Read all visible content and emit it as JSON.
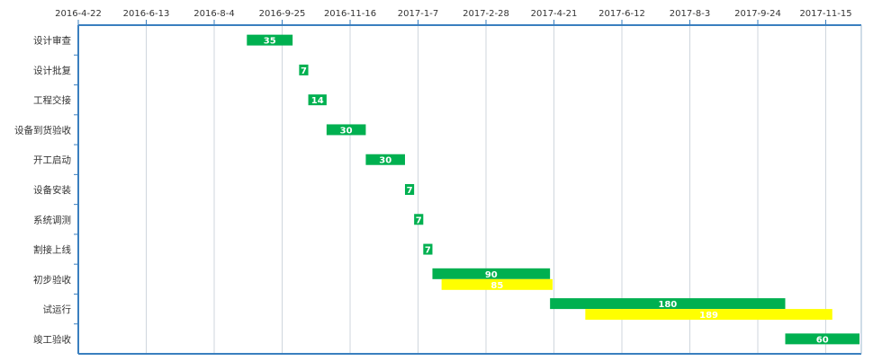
{
  "chart_data": {
    "type": "bar",
    "orientation": "horizontal-gantt",
    "x_ticks": [
      "2016-4-22",
      "2016-6-13",
      "2016-8-4",
      "2016-9-25",
      "2016-11-16",
      "2017-1-7",
      "2017-2-28",
      "2017-4-21",
      "2017-6-12",
      "2017-8-3",
      "2017-9-24",
      "2017-11-15"
    ],
    "xlim": [
      "2016-4-22",
      "2017-12-10"
    ],
    "grid": true,
    "categories": [
      "设计审查",
      "设计批复",
      "工程交接",
      "设备到货验收",
      "开工启动",
      "设备安装",
      "系统调测",
      "割接上线",
      "初步验收",
      "试运行",
      "竣工验收"
    ],
    "series": [
      {
        "color": "#00b050",
        "tasks": [
          {
            "category": "设计审查",
            "start": "2016-8-29",
            "end": "2016-10-3",
            "duration": 35
          },
          {
            "category": "设计批复",
            "start": "2016-10-8",
            "end": "2016-10-15",
            "duration": 7
          },
          {
            "category": "工程交接",
            "start": "2016-10-15",
            "end": "2016-10-29",
            "duration": 14
          },
          {
            "category": "设备到货验收",
            "start": "2016-10-29",
            "end": "2016-11-28",
            "duration": 30
          },
          {
            "category": "开工启动",
            "start": "2016-11-28",
            "end": "2016-12-28",
            "duration": 30
          },
          {
            "category": "设备安装",
            "start": "2016-12-28",
            "end": "2017-1-4",
            "duration": 7
          },
          {
            "category": "系统调测",
            "start": "2017-1-4",
            "end": "2017-1-11",
            "duration": 7
          },
          {
            "category": "割接上线",
            "start": "2017-1-11",
            "end": "2017-1-18",
            "duration": 7
          },
          {
            "category": "初步验收",
            "start": "2017-1-18",
            "end": "2017-4-18",
            "duration": 90
          },
          {
            "category": "试运行",
            "start": "2017-4-18",
            "end": "2017-10-15",
            "duration": 180
          },
          {
            "category": "竣工验收",
            "start": "2017-10-15",
            "end": "2017-12-14",
            "duration": 60
          }
        ]
      },
      {
        "color": "#ffff00",
        "tasks": [
          {
            "category": "初步验收",
            "start": "2017-1-25",
            "end": "2017-4-20",
            "duration": 85
          },
          {
            "category": "试运行",
            "start": "2017-5-15",
            "end": "2017-11-20",
            "duration": 189
          }
        ]
      }
    ]
  }
}
